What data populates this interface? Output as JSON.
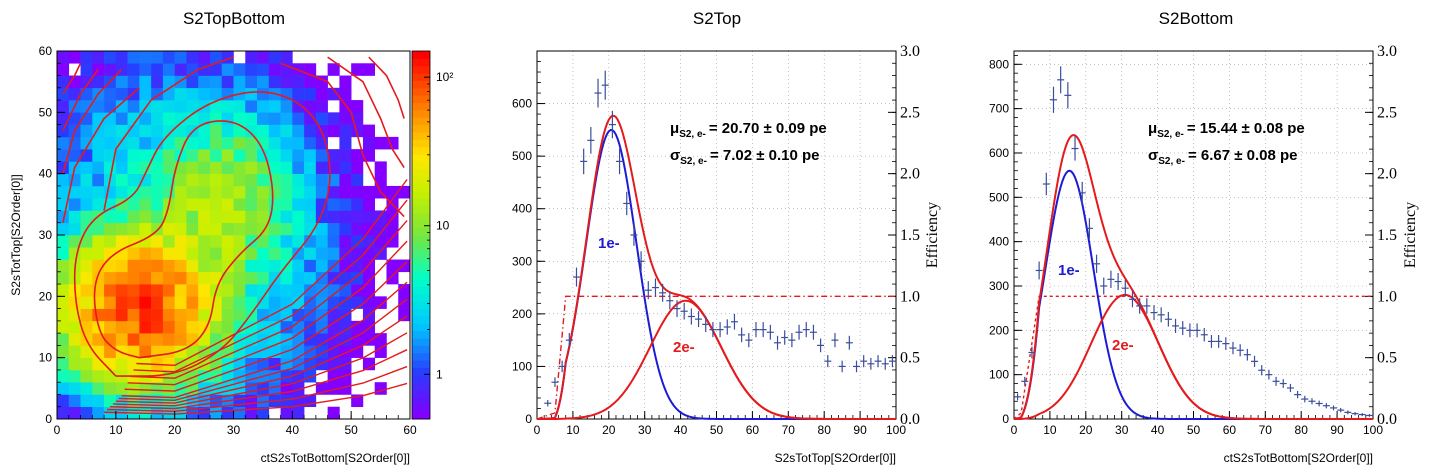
{
  "chart_data": [
    {
      "type": "heatmap",
      "title": "S2TopBottom",
      "xlabel": "ctS2sTotBottom[S2Order[0]]",
      "ylabel": "S2sTotTop[S2Order[0]]",
      "xlim": [
        0,
        60
      ],
      "ylim": [
        0,
        60
      ],
      "xticks": [
        "0",
        "10",
        "20",
        "30",
        "40",
        "50",
        "60"
      ],
      "yticks": [
        "0",
        "10",
        "20",
        "30",
        "40",
        "50",
        "60"
      ],
      "colorbar": {
        "scale": "log",
        "range": [
          0.5,
          150
        ],
        "tick_labels": [
          "1",
          "10",
          "10²"
        ]
      },
      "bins": 30,
      "peak_centers": [
        {
          "x": 14,
          "y": 18,
          "counts": 100
        },
        {
          "x": 28,
          "y": 35,
          "counts": 12
        }
      ],
      "contour_color": "#e41a1c"
    },
    {
      "type": "line",
      "title": "S2Top",
      "xlabel": "S2sTotTop[S2Order[0]]",
      "ylabel": "",
      "ylabel_right": "Efficiency",
      "xlim": [
        0,
        100
      ],
      "ylim": [
        0,
        700
      ],
      "ylim_right": [
        0,
        3.0
      ],
      "xticks": [
        "0",
        "10",
        "20",
        "30",
        "40",
        "50",
        "60",
        "70",
        "80",
        "90",
        "100"
      ],
      "yticks": [
        "0",
        "100",
        "200",
        "300",
        "400",
        "500",
        "600"
      ],
      "yticks_right": [
        "0.0",
        "0.5",
        "1.0",
        "1.5",
        "2.0",
        "2.5",
        "3.0"
      ],
      "annotation": {
        "mu_sym": "μ",
        "mu_sub": "S2, e-",
        "mu_val": "= 20.70 ± 0.09 pe",
        "sigma_sym": "σ",
        "sigma_sub": "S2, e-",
        "sigma_val": "= 7.02 ± 0.10 pe"
      },
      "labels": {
        "one": "1e-",
        "two": "2e-"
      },
      "data_points": {
        "x": [
          3,
          5,
          7,
          9,
          11,
          13,
          15,
          17,
          19,
          21,
          23,
          25,
          27,
          29,
          31,
          33,
          35,
          37,
          39,
          41,
          43,
          45,
          47,
          49,
          51,
          53,
          55,
          57,
          59,
          61,
          63,
          65,
          67,
          69,
          71,
          73,
          75,
          77,
          79,
          81,
          83,
          85,
          87,
          89,
          91,
          93,
          95,
          97,
          99
        ],
        "y": [
          30,
          70,
          100,
          150,
          270,
          490,
          530,
          620,
          635,
          560,
          490,
          410,
          350,
          300,
          245,
          250,
          240,
          225,
          210,
          205,
          195,
          190,
          180,
          170,
          170,
          175,
          185,
          160,
          150,
          170,
          170,
          165,
          145,
          155,
          150,
          165,
          170,
          165,
          140,
          110,
          150,
          100,
          145,
          100,
          110,
          105,
          110,
          105,
          110
        ]
      },
      "fit_1e": {
        "mu": 20.7,
        "sigma": 7.02,
        "amp": 550
      },
      "fit_2e": {
        "mu": 41.4,
        "sigma": 9.93,
        "amp": 225
      },
      "threshold": {
        "style": "dashdot",
        "onset": 5,
        "full": 8,
        "plateau": 1.0
      },
      "colors": {
        "data": "#3b4e9c",
        "one": "#1c1cd6",
        "two": "#e41a1c",
        "total": "#e41a1c"
      }
    },
    {
      "type": "line",
      "title": "S2Bottom",
      "xlabel": "ctS2sTotBottom[S2Order[0]]",
      "ylabel": "",
      "ylabel_right": "Efficiency",
      "xlim": [
        0,
        100
      ],
      "ylim": [
        0,
        830
      ],
      "ylim_right": [
        0,
        3.0
      ],
      "xticks": [
        "0",
        "10",
        "20",
        "30",
        "40",
        "50",
        "60",
        "70",
        "80",
        "90",
        "100"
      ],
      "yticks": [
        "0",
        "100",
        "200",
        "300",
        "400",
        "500",
        "600",
        "700",
        "800"
      ],
      "yticks_right": [
        "0.0",
        "0.5",
        "1.0",
        "1.5",
        "2.0",
        "2.5",
        "3.0"
      ],
      "annotation": {
        "mu_sym": "μ",
        "mu_sub": "S2, e-",
        "mu_val": "= 15.44 ± 0.08 pe",
        "sigma_sym": "σ",
        "sigma_sub": "S2, e-",
        "sigma_val": "= 6.67 ± 0.08 pe"
      },
      "labels": {
        "one": "1e-",
        "two": "2e-"
      },
      "data_points": {
        "x": [
          1,
          3,
          5,
          7,
          9,
          11,
          13,
          15,
          17,
          19,
          21,
          23,
          25,
          27,
          29,
          31,
          33,
          35,
          37,
          39,
          41,
          43,
          45,
          47,
          49,
          51,
          53,
          55,
          57,
          59,
          61,
          63,
          65,
          67,
          69,
          71,
          73,
          75,
          77,
          79,
          81,
          83,
          85,
          87,
          89,
          91,
          93,
          95,
          97,
          99
        ],
        "y": [
          50,
          85,
          150,
          335,
          530,
          720,
          765,
          730,
          610,
          510,
          430,
          350,
          300,
          315,
          310,
          295,
          270,
          255,
          255,
          240,
          235,
          225,
          210,
          205,
          200,
          200,
          190,
          175,
          175,
          170,
          160,
          155,
          145,
          130,
          110,
          100,
          85,
          80,
          70,
          55,
          45,
          40,
          35,
          30,
          25,
          20,
          15,
          12,
          10,
          8
        ]
      },
      "fit_1e": {
        "mu": 15.44,
        "sigma": 6.67,
        "amp": 560
      },
      "fit_2e": {
        "mu": 30.88,
        "sigma": 9.43,
        "amp": 280
      },
      "threshold": {
        "style": "dashed",
        "onset": 2,
        "full": 7,
        "plateau": 1.0
      },
      "colors": {
        "data": "#3b4e9c",
        "one": "#1c1cd6",
        "two": "#e41a1c",
        "total": "#e41a1c"
      }
    }
  ]
}
